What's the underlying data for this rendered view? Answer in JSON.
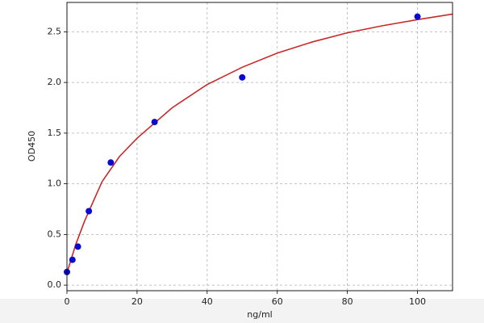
{
  "chart_data": {
    "type": "scatter",
    "xlabel": "ng/ml",
    "ylabel": "OD450",
    "xlim": [
      0,
      110
    ],
    "ylim": [
      -0.055,
      2.79
    ],
    "xticks": [
      0,
      20,
      40,
      60,
      80,
      100
    ],
    "yticks": [
      {
        "value": 0,
        "label": "0.0"
      },
      0.5,
      {
        "value": 1,
        "label": "1.0"
      },
      1.5,
      {
        "value": 2,
        "label": "2.0"
      },
      2.5
    ],
    "grid": true,
    "series": [
      {
        "style": "markers",
        "color": "#0a0ad0",
        "x": [
          0,
          1.5625,
          3.125,
          6.25,
          12.5,
          25,
          50,
          100
        ],
        "values": [
          0.13,
          0.25,
          0.38,
          0.73,
          1.21,
          1.61,
          2.05,
          2.65
        ]
      },
      {
        "style": "line",
        "color": "#c8282a",
        "x": [
          0,
          2.5,
          5,
          10,
          15,
          20,
          30,
          40,
          50,
          60,
          70,
          80,
          90,
          100,
          110
        ],
        "values": [
          0.12,
          0.4,
          0.63,
          1.02,
          1.27,
          1.45,
          1.75,
          1.98,
          2.15,
          2.29,
          2.4,
          2.49,
          2.56,
          2.62,
          2.675
        ]
      }
    ]
  }
}
